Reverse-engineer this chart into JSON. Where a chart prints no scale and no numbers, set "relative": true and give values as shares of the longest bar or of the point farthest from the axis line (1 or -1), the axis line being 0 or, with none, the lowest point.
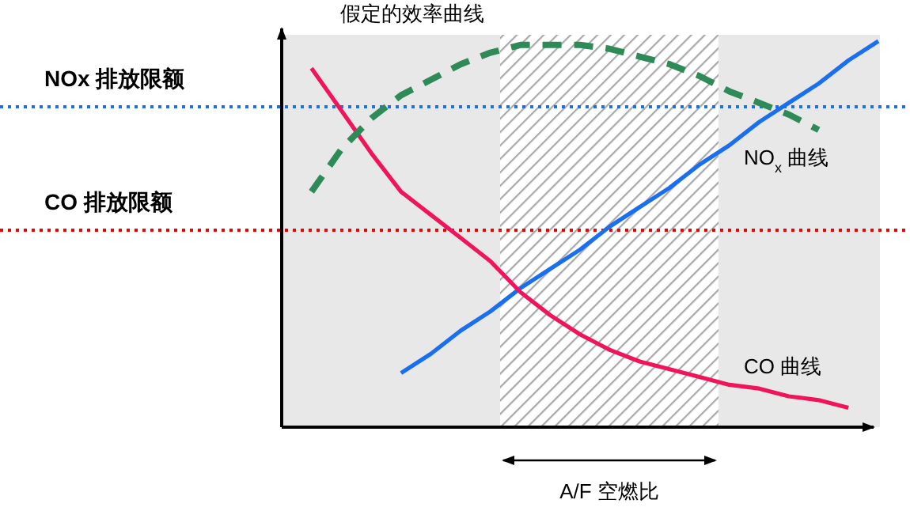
{
  "chart_data": {
    "type": "line",
    "relative": true,
    "ylabel": "假定的效率曲线",
    "categories": [
      null,
      null,
      null,
      null,
      null,
      null,
      null,
      null,
      null,
      null,
      null,
      null,
      null,
      null,
      null,
      null,
      null,
      null,
      null,
      null,
      null
    ],
    "series": [
      {
        "name": "NO$_{x}$ 曲线",
        "color": "#1a6ff0",
        "values": [
          null,
          null,
          null,
          null,
          0.14,
          0.19,
          0.25,
          0.3,
          0.36,
          0.41,
          0.46,
          0.52,
          0.57,
          0.62,
          0.68,
          0.73,
          0.79,
          0.84,
          0.89,
          0.95,
          1
        ]
      },
      {
        "name": "CO 曲线",
        "color": "#f0145a",
        "values": [
          null,
          0.93,
          0.82,
          0.71,
          0.61,
          0.55,
          0.49,
          0.43,
          0.35,
          0.29,
          0.24,
          0.2,
          0.17,
          0.15,
          0.13,
          0.11,
          0.1,
          0.08,
          0.07,
          0.05,
          null
        ]
      },
      {
        "color": "#2e8b57",
        "line_style": "dashed",
        "values": [
          null,
          0.61,
          0.72,
          0.8,
          0.86,
          0.9,
          0.94,
          0.97,
          0.99,
          0.99,
          0.99,
          0.98,
          0.96,
          0.94,
          0.91,
          0.87,
          0.84,
          0.81,
          0.77,
          null,
          null
        ]
      }
    ],
    "ref_lines": [
      {
        "axis": "y",
        "value": 0.83,
        "label": "NOx 排放限额",
        "color": "#1a6ff0",
        "line_style": "dotted"
      },
      {
        "axis": "y",
        "value": 0.51,
        "label": "CO 排放限额",
        "color": "#f00000",
        "line_style": "dotted"
      }
    ],
    "annotations": [
      "A/F 空燃比"
    ]
  }
}
